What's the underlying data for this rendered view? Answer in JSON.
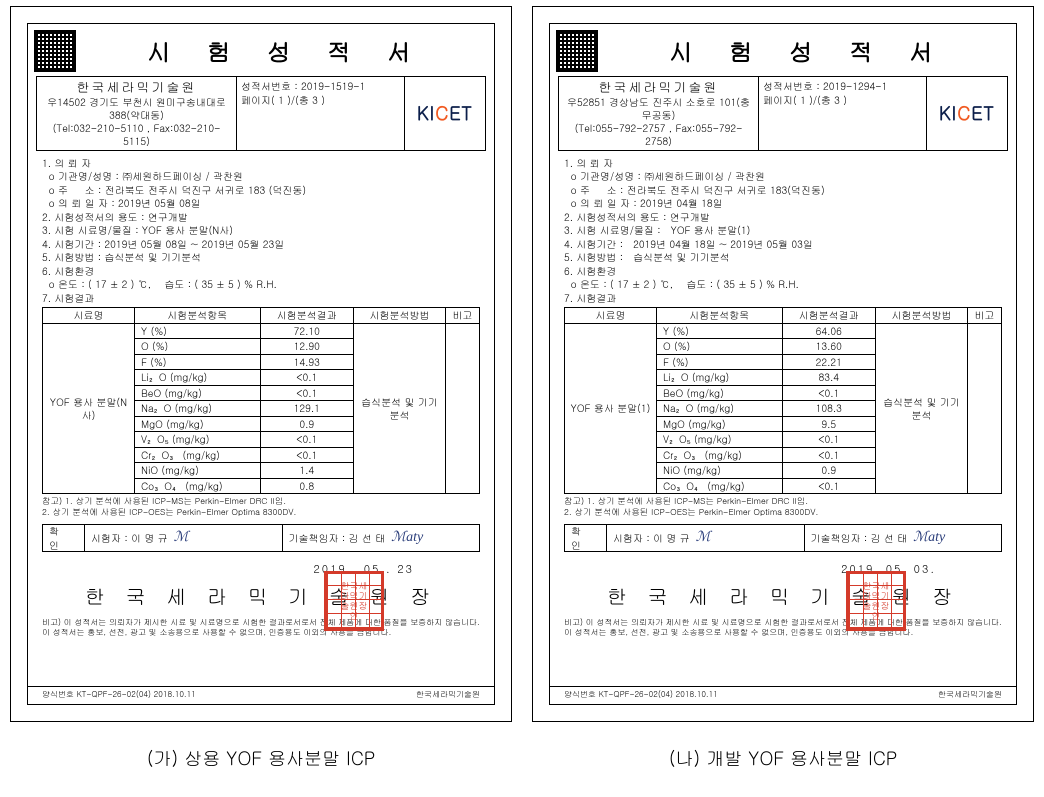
{
  "title": "시 험 성 적 서",
  "reports": [
    {
      "org": "한국세라믹기술원",
      "addr1": "우14502 경기도 부천시 원미구송내대로388(약대동)",
      "addr2": "(Tel:032-210-5110 , Fax:032-210-5115)",
      "report_no_label": "성적서번호 :",
      "report_no": "2019-1519-1",
      "page_label": "페이지( 1 )/(총 3 )",
      "logo_text_before": "KI",
      "logo_text_c": "C",
      "logo_text_after": "ET",
      "info_lines": [
        "1. 의 뢰 자",
        "  o 기관명/성명 : ㈜세원하드페이싱 / 곽찬원",
        "  o 주     소 : 전라북도 전주시 덕진구 서귀로 183 (덕진동)",
        "  o 의 뢰 일 자 : 2019년 05월 08일",
        "2. 시험성적서의 용도 : 연구개발",
        "3. 시험 시료명/물질 : YOF 용사 분말(N사)",
        "4. 시험기간 : 2019년 05월 08일 ~ 2019년 05월 23일",
        "5. 시험방법 : 습식분석 및 기기분석",
        "6. 시험환경",
        "  o 온도 : ( 17 ± 2 ) ℃,    습도 : ( 35 ± 5 ) % R.H.",
        "7. 시험결과"
      ],
      "table": {
        "headers": [
          "시료명",
          "시험분석항목",
          "시험분석결과",
          "시험분석방법",
          "비고"
        ],
        "sample": "YOF 용사 분말(N사)",
        "method": "습식분석 및 기기분석",
        "rows": [
          {
            "p": "Y (%)",
            "v": "72.10"
          },
          {
            "p": "O (%)",
            "v": "12.90"
          },
          {
            "p": "F (%)",
            "v": "14.93"
          },
          {
            "p": "Li₂O (mg/kg)",
            "v": "<0.1"
          },
          {
            "p": "BeO (mg/kg)",
            "v": "<0.1"
          },
          {
            "p": "Na₂O (mg/kg)",
            "v": "129.1"
          },
          {
            "p": "MgO (mg/kg)",
            "v": "0.9"
          },
          {
            "p": "V₂O₅ (mg/kg)",
            "v": "<0.1"
          },
          {
            "p": "Cr₂O₃ (mg/kg)",
            "v": "<0.1"
          },
          {
            "p": "NiO (mg/kg)",
            "v": "1.4"
          },
          {
            "p": "Co₃O₄ (mg/kg)",
            "v": "0.8"
          }
        ]
      },
      "notes": [
        "참고) 1. 상기 분석에 사용된 ICP-MS는 Perkin-Elmer DRC II임.",
        "      2. 상기 분석에 사용된 ICP-OES는 Perkin-Elmer Optima 8300DV."
      ],
      "confirm_label": "확  인",
      "tester_label": "시험자 : 이 명 규",
      "tech_label": "기술책임자 : 김 선 태",
      "sig1": "ℳ",
      "sig2": "ℳaty",
      "date": "2019 . 05 . 23",
      "org_line": "한 국 세 라 믹 기 술 원 장",
      "stamp_text": "한국세\n라믹기\n술원장\n인",
      "disclaimer": "비고) 이 성적서는 의뢰자가 제시한 시료 및 시료명으로 시험한 결과로서로서 전체 제품에 대한 품질을 보증하지 않습니다.\n      이 성적서는 홍보, 선전, 광고 및 소송용으로 사용할 수 없으며, 인증용도 이외의 사용을 금합니다.",
      "footer_left": "양식번호 KT-QPF-26-02(04) 2018.10.11",
      "footer_right": "한국세라믹기술원"
    },
    {
      "org": "한국세라믹기술원",
      "addr1": "우52851 경상남도 진주시 소호로 101(충무공동)",
      "addr2": "(Tel:055-792-2757 , Fax:055-792-2758)",
      "report_no_label": "성적서번호 :",
      "report_no": "2019-1294-1",
      "page_label": "페이지( 1 )/(총 3 )",
      "logo_text_before": "KI",
      "logo_text_c": "C",
      "logo_text_after": "ET",
      "info_lines": [
        "1. 의 뢰 자",
        "  o 기관명/성명 : ㈜세원하드페이싱 / 곽찬원",
        "  o 주     소 : 전라북도 전주시 덕진구 서귀로 183(덕진동)",
        "  o 의 뢰 일 자 : 2019년 04월 18일",
        "2. 시험성적서의 용도 : 연구개발",
        "3. 시험 시료명/물질 :   YOF 용사 분말(1)",
        "4. 시험기간 :   2019년 04월 18일 ~ 2019년 05월 03일",
        "5. 시험방법 :   습식분석 및 기기분석",
        "6. 시험환경",
        "  o 온도 : ( 17 ± 2 ) ℃,    습도 : ( 35 ± 5 ) % R.H.",
        "7. 시험결과"
      ],
      "table": {
        "headers": [
          "시료명",
          "시험분석항목",
          "시험분석결과",
          "시험분석방법",
          "비고"
        ],
        "sample": "YOF 용사 분말(1)",
        "method": "습식분석 및 기기분석",
        "rows": [
          {
            "p": "Y (%)",
            "v": "64.06"
          },
          {
            "p": "O (%)",
            "v": "13.60"
          },
          {
            "p": "F (%)",
            "v": "22.21"
          },
          {
            "p": "Li₂O (mg/kg)",
            "v": "83.4"
          },
          {
            "p": "BeO (mg/kg)",
            "v": "<0.1"
          },
          {
            "p": "Na₂O (mg/kg)",
            "v": "108.3"
          },
          {
            "p": "MgO (mg/kg)",
            "v": "9.5"
          },
          {
            "p": "V₂O₅ (mg/kg)",
            "v": "<0.1"
          },
          {
            "p": "Cr₂O₃ (mg/kg)",
            "v": "<0.1"
          },
          {
            "p": "NiO (mg/kg)",
            "v": "0.9"
          },
          {
            "p": "Co₃O₄ (mg/kg)",
            "v": "<0.1"
          }
        ]
      },
      "notes": [
        "참고) 1. 상기 분석에 사용된 ICP-MS는 Perkin-Elmer DRC II임.",
        "      2. 상기 분석에 사용된 ICP-OES는 Perkin-Elmer Optima 8300DV."
      ],
      "confirm_label": "확  인",
      "tester_label": "시험자 : 이 명 규",
      "tech_label": "기술책임자 : 김 선 태",
      "sig1": "ℳ",
      "sig2": "ℳaty",
      "date": "2019. 05. 03.",
      "org_line": "한 국 세 라 믹 기 술 원 장",
      "stamp_text": "한국세\n라믹기\n술원장\n인",
      "disclaimer": "비고) 이 성적서는 의뢰자가 제시한 시료 및 시료명으로 시험한 결과로서로서 전체 제품에 대한 품질을 보증하지 않습니다.\n      이 성적서는 홍보, 선전, 광고 및 소송용으로 사용할 수 없으며, 인증용도 이외의 사용을 금합니다.",
      "footer_left": "양식번호 KT-QPF-26-02(04) 2018.10.11",
      "footer_right": "한국세라믹기술원"
    }
  ],
  "captions": [
    "(가) 상용 YOF 용사분말 ICP",
    "(나) 개발 YOF 용사분말 ICP"
  ]
}
